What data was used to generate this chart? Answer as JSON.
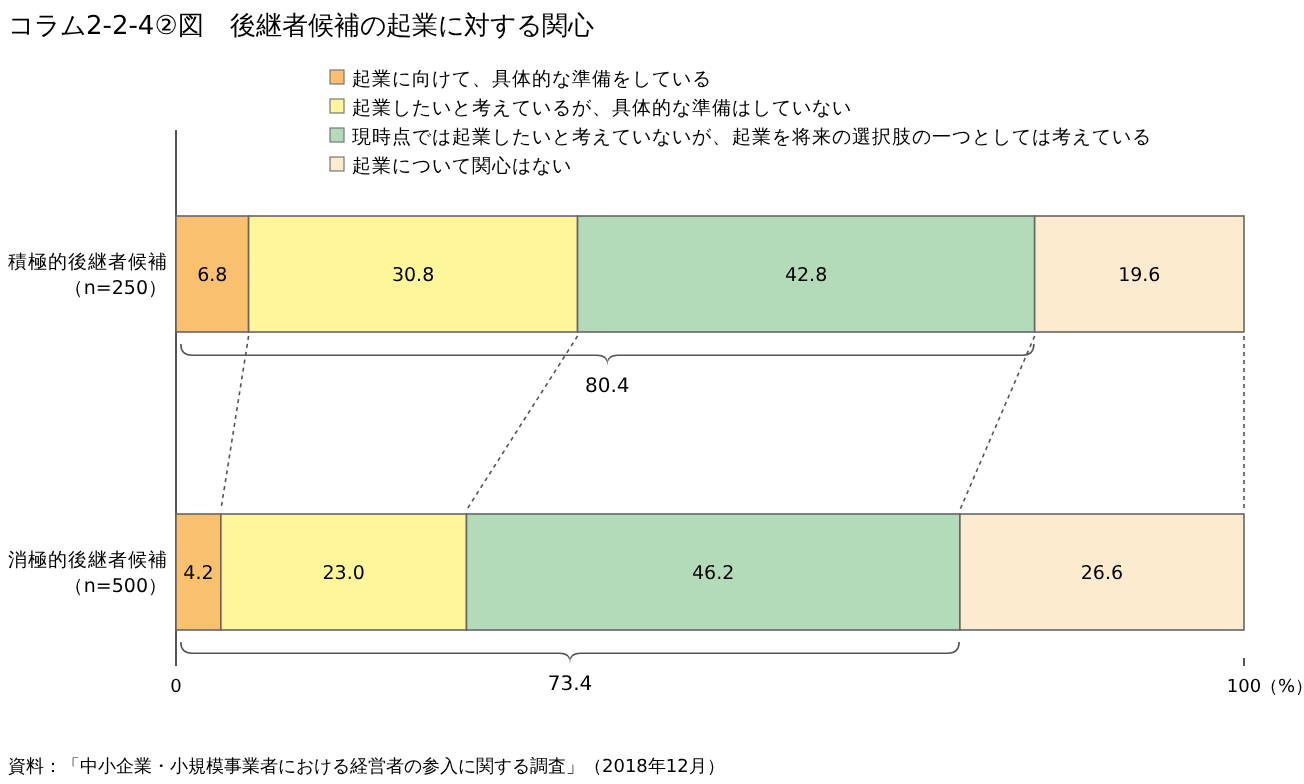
{
  "chart_data": {
    "type": "bar",
    "orientation": "horizontal",
    "stacked": true,
    "title": "コラム2-2-4②図　後継者候補の起業に対する関心",
    "categories": [
      "積極的後継者候補（n=250）",
      "消極的後継者候補（n=500）"
    ],
    "series": [
      {
        "name": "起業に向けて、具体的な準備をしている",
        "color": "#f9c06f",
        "values": [
          6.8,
          4.2
        ]
      },
      {
        "name": "起業したいと考えているが、具体的な準備はしていない",
        "color": "#fff59a",
        "values": [
          30.8,
          23.0
        ]
      },
      {
        "name": "現時点では起業したいと考えていないが、起業を将来の選択肢の一つとしては考えている",
        "color": "#b3dbb9",
        "values": [
          42.8,
          46.2
        ]
      },
      {
        "name": "起業について関心はない",
        "color": "#fdebd0",
        "values": [
          19.6,
          26.6
        ]
      }
    ],
    "value_labels": [
      [
        "6.8",
        "4.2"
      ],
      [
        "30.8",
        "23.0"
      ],
      [
        "42.8",
        "46.2"
      ],
      [
        "19.6",
        "26.6"
      ]
    ],
    "xlim": [
      0,
      100
    ],
    "xticks": [
      0,
      100
    ],
    "xlabel": "（%）",
    "legend": "top",
    "grid": false,
    "annotations": [
      "80.4",
      "73.4",
      "資料：「中小企業・小規模事業者における経営者の参入に関する調査」（2018年12月）"
    ]
  }
}
